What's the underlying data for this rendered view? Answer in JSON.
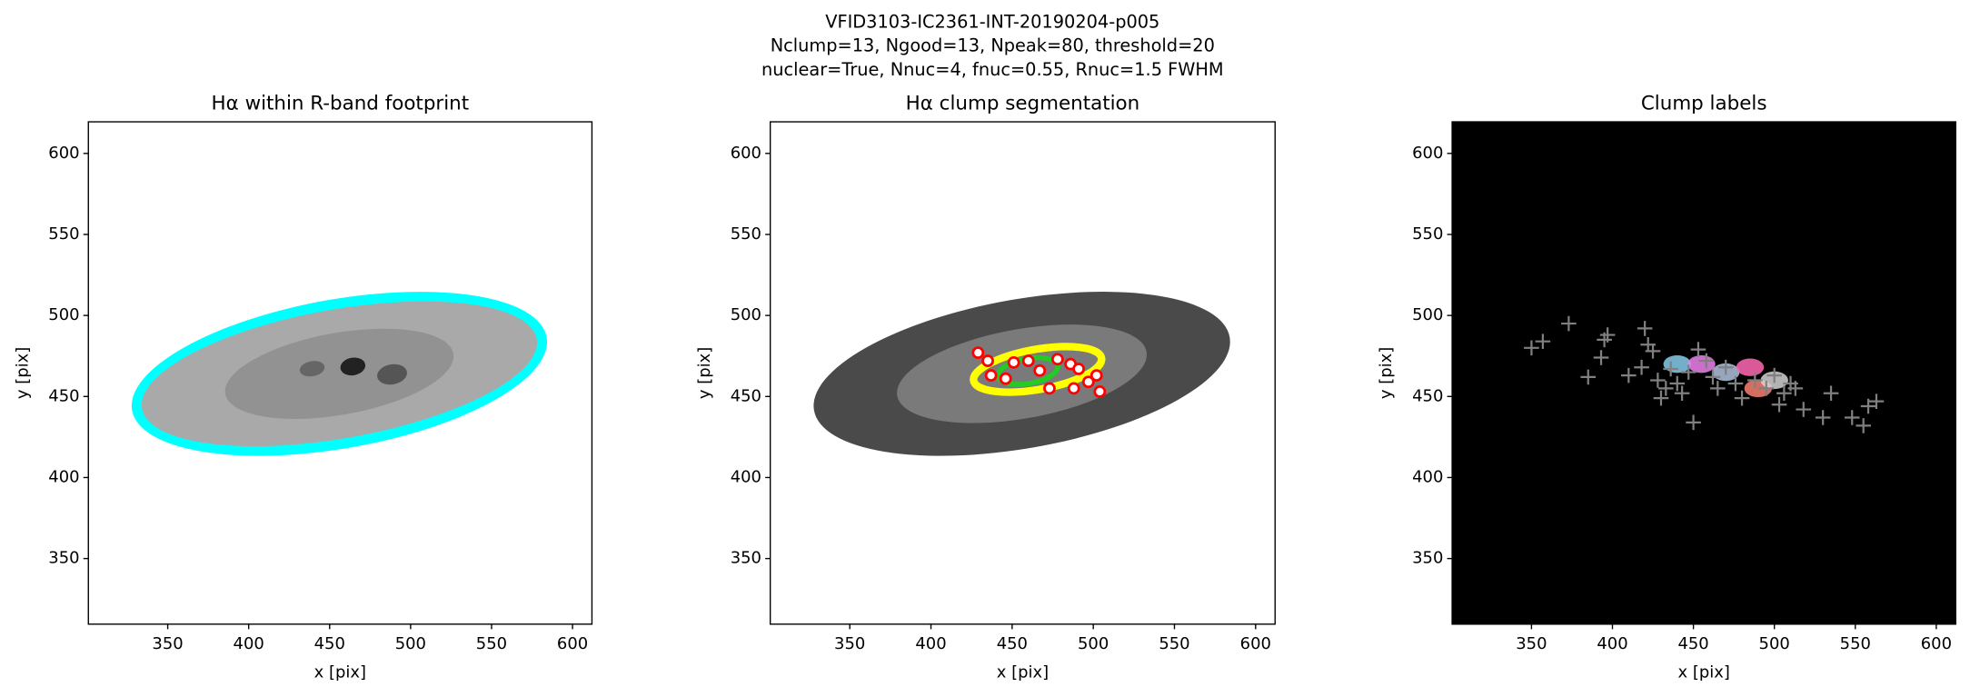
{
  "suptitle": [
    "VFID3103-IC2361-INT-20190204-p005",
    "Nclump=13, Ngood=13, Npeak=80, threshold=20",
    "nuclear=True, Nnuc=4, fnuc=0.55, Rnuc=1.5 FWHM"
  ],
  "chart_data": [
    {
      "type": "image",
      "title": "Hα within R-band footprint",
      "xlabel": "x [pix]",
      "ylabel": "y [pix]",
      "xlim": [
        301,
        612
      ],
      "ylim": [
        309.5,
        619.5
      ],
      "xticks": [
        350,
        400,
        450,
        500,
        550,
        600
      ],
      "yticks": [
        350,
        400,
        450,
        500,
        550,
        600
      ],
      "facecolor": "#ffffff",
      "footprint_color": "#00ffff"
    },
    {
      "type": "scatter",
      "title": "Hα clump segmentation",
      "xlabel": "x [pix]",
      "ylabel": "y [pix]",
      "xlim": [
        301,
        612
      ],
      "ylim": [
        309.5,
        619.5
      ],
      "xticks": [
        350,
        400,
        450,
        500,
        550,
        600
      ],
      "yticks": [
        350,
        400,
        450,
        500,
        550,
        600
      ],
      "facecolor": "#ffffff",
      "series": [
        {
          "color": "#ff0000",
          "marker": "circle",
          "x": [
            429,
            435,
            437,
            446,
            451,
            460,
            467,
            473,
            478,
            486,
            491,
            497,
            502,
            504,
            488
          ],
          "values": [
            477,
            472,
            463,
            461,
            471,
            472,
            466,
            455,
            473,
            470,
            467,
            459,
            463,
            453,
            455
          ]
        }
      ]
    },
    {
      "type": "scatter",
      "title": "Clump labels",
      "xlabel": "x [pix]",
      "ylabel": "y [pix]",
      "xlim": [
        301,
        612
      ],
      "ylim": [
        309.5,
        619.5
      ],
      "xticks": [
        350,
        400,
        450,
        500,
        550,
        600
      ],
      "yticks": [
        350,
        400,
        450,
        500,
        550,
        600
      ],
      "facecolor": "#000000",
      "series": [
        {
          "color": "#808080",
          "marker": "plus",
          "x": [
            350,
            357,
            373,
            385,
            393,
            395,
            397,
            410,
            418,
            420,
            422,
            425,
            428,
            430,
            433,
            436,
            440,
            443,
            447,
            450,
            453,
            458,
            462,
            465,
            470,
            476,
            480,
            488,
            495,
            500,
            503,
            506,
            510,
            513,
            518,
            530,
            535,
            548,
            555,
            558,
            563
          ],
          "values": [
            480,
            484,
            495,
            462,
            474,
            485,
            488,
            463,
            468,
            492,
            482,
            478,
            460,
            449,
            455,
            467,
            458,
            452,
            465,
            434,
            479,
            472,
            462,
            455,
            468,
            458,
            449,
            460,
            455,
            463,
            445,
            452,
            458,
            455,
            442,
            437,
            452,
            437,
            432,
            444,
            447
          ]
        }
      ]
    }
  ]
}
